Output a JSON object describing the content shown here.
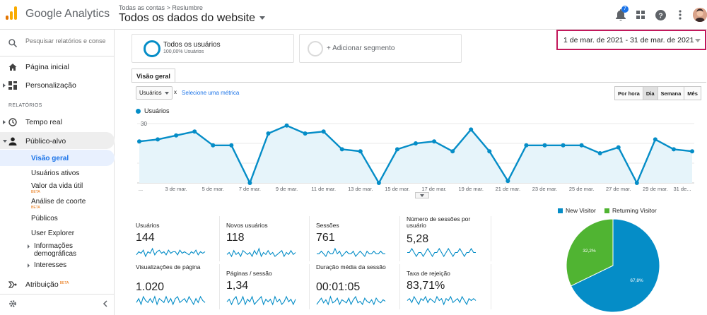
{
  "app": {
    "name": "Google Analytics"
  },
  "header": {
    "breadcrumb": [
      "Todas as contas",
      "Reslumbre"
    ],
    "breadcrumb_sep": ">",
    "property_title": "Todos os dados do website",
    "notification_count": "7"
  },
  "sidebar": {
    "search_placeholder": "Pesquisar relatórios e conse",
    "home": "Página inicial",
    "customization": "Personalização",
    "reports_heading": "RELATÓRIOS",
    "realtime": "Tempo real",
    "audience": "Público-alvo",
    "audience_items": [
      {
        "label": "Visão geral"
      },
      {
        "label": "Usuários ativos"
      },
      {
        "label": "Valor da vida útil",
        "badge": "BETA"
      },
      {
        "label": "Análise de coorte",
        "badge": "BETA"
      },
      {
        "label": "Públicos"
      },
      {
        "label": "User Explorer"
      },
      {
        "label": "Informações demográficas"
      },
      {
        "label": "Interesses"
      }
    ],
    "attribution": "Atribuição",
    "attribution_badge": "BETA"
  },
  "segments": [
    {
      "name": "Todos os usuários",
      "sub": "100,00% Usuários"
    },
    {
      "name": "+ Adicionar segmento",
      "sub": ""
    }
  ],
  "date_range": "1 de mar. de 2021 - 31 de mar. de 2021",
  "tab": "Visão geral",
  "metric_select": "Usuários",
  "metric_remove": "x",
  "select_metric_link": "Selecione uma métrica",
  "granularity": [
    {
      "label": "Por hora",
      "selected": false
    },
    {
      "label": "Dia",
      "selected": true
    },
    {
      "label": "Semana",
      "selected": false
    },
    {
      "label": "Mês",
      "selected": false
    }
  ],
  "colors": {
    "primary": "#058dc7",
    "returning": "#50b432",
    "date_border": "#c2185b"
  },
  "chart_data": [
    {
      "type": "area",
      "series": [
        {
          "name": "Usuários",
          "values": [
            21,
            22,
            24,
            26,
            19,
            19,
            0,
            25,
            29,
            25,
            26,
            17,
            16,
            0,
            17,
            20,
            21,
            16,
            27,
            16,
            1,
            19,
            19,
            19,
            19,
            15,
            18,
            0,
            22,
            17,
            16
          ]
        }
      ],
      "x": [
        "1",
        "2",
        "3",
        "4",
        "5",
        "6",
        "7",
        "8",
        "9",
        "10",
        "11",
        "12",
        "13",
        "14",
        "15",
        "16",
        "17",
        "18",
        "19",
        "20",
        "21",
        "22",
        "23",
        "24",
        "25",
        "26",
        "27",
        "28",
        "29",
        "30",
        "31"
      ],
      "x_tick_labels": [
        "...",
        "3 de mar.",
        "5 de mar.",
        "7 de mar.",
        "9 de mar.",
        "11 de mar.",
        "13 de mar.",
        "15 de mar.",
        "17 de mar.",
        "19 de mar.",
        "21 de mar.",
        "23 de mar.",
        "25 de mar.",
        "27 de mar.",
        "29 de mar.",
        "31 de..."
      ],
      "y_ticks": [
        "30",
        "20",
        "10"
      ],
      "ylim": [
        0,
        30
      ]
    },
    {
      "type": "pie",
      "categories": [
        "New Visitor",
        "Returning Visitor"
      ],
      "values": [
        67.8,
        32.2
      ],
      "labels": [
        "67,8%",
        "32,2%"
      ]
    }
  ],
  "metrics": [
    {
      "label": "Usuários",
      "value": "144",
      "spark": [
        3,
        5,
        4,
        6,
        2,
        5,
        4,
        7,
        3,
        5,
        6,
        4,
        5,
        3,
        6,
        4,
        5,
        5,
        3,
        6,
        4,
        5,
        4,
        3,
        5,
        4,
        6,
        3,
        5,
        4,
        5
      ]
    },
    {
      "label": "Novos usuários",
      "value": "118",
      "spark": [
        4,
        5,
        3,
        6,
        4,
        5,
        3,
        6,
        5,
        4,
        5,
        3,
        6,
        4,
        7,
        3,
        5,
        4,
        6,
        4,
        5,
        3,
        4,
        5,
        6,
        3,
        5,
        4,
        6,
        4,
        5
      ]
    },
    {
      "label": "Sessões",
      "value": "761",
      "spark": [
        4,
        4,
        5,
        4,
        3,
        5,
        4,
        4,
        6,
        4,
        5,
        3,
        4,
        5,
        4,
        4,
        5,
        3,
        4,
        5,
        4,
        3,
        5,
        4,
        4,
        5,
        4,
        4,
        5,
        4,
        4
      ]
    },
    {
      "label": "Número de sessões por usuário",
      "value": "5,28",
      "spark": [
        5,
        5,
        6,
        5,
        4,
        5,
        5,
        4,
        5,
        6,
        5,
        4,
        5,
        5,
        6,
        5,
        4,
        5,
        6,
        5,
        4,
        5,
        5,
        6,
        5,
        4,
        5,
        5,
        6,
        5,
        5
      ]
    },
    {
      "label": "Visualizações de página",
      "value": "1.020",
      "spark": [
        3,
        5,
        2,
        6,
        4,
        3,
        5,
        3,
        6,
        2,
        5,
        4,
        3,
        6,
        3,
        5,
        2,
        5,
        6,
        3,
        4,
        5,
        3,
        6,
        4,
        2,
        5,
        3,
        6,
        4,
        3
      ]
    },
    {
      "label": "Páginas / sessão",
      "value": "1,34",
      "spark": [
        4,
        5,
        3,
        5,
        6,
        3,
        4,
        6,
        3,
        5,
        4,
        6,
        3,
        4,
        5,
        6,
        3,
        5,
        4,
        5,
        3,
        6,
        4,
        5,
        3,
        4,
        6,
        4,
        5,
        3,
        5
      ]
    },
    {
      "label": "Duração média da sessão",
      "value": "00:01:05",
      "spark": [
        2,
        4,
        6,
        3,
        5,
        2,
        7,
        3,
        4,
        6,
        2,
        5,
        4,
        3,
        6,
        2,
        5,
        7,
        3,
        4,
        2,
        6,
        4,
        3,
        5,
        2,
        6,
        4,
        3,
        5,
        4
      ]
    },
    {
      "label": "Taxa de rejeição",
      "value": "83,71%",
      "spark": [
        5,
        6,
        4,
        7,
        5,
        3,
        6,
        5,
        7,
        4,
        6,
        5,
        4,
        7,
        5,
        6,
        3,
        6,
        5,
        7,
        4,
        5,
        6,
        4,
        7,
        5,
        3,
        6,
        5,
        6,
        5
      ]
    }
  ]
}
